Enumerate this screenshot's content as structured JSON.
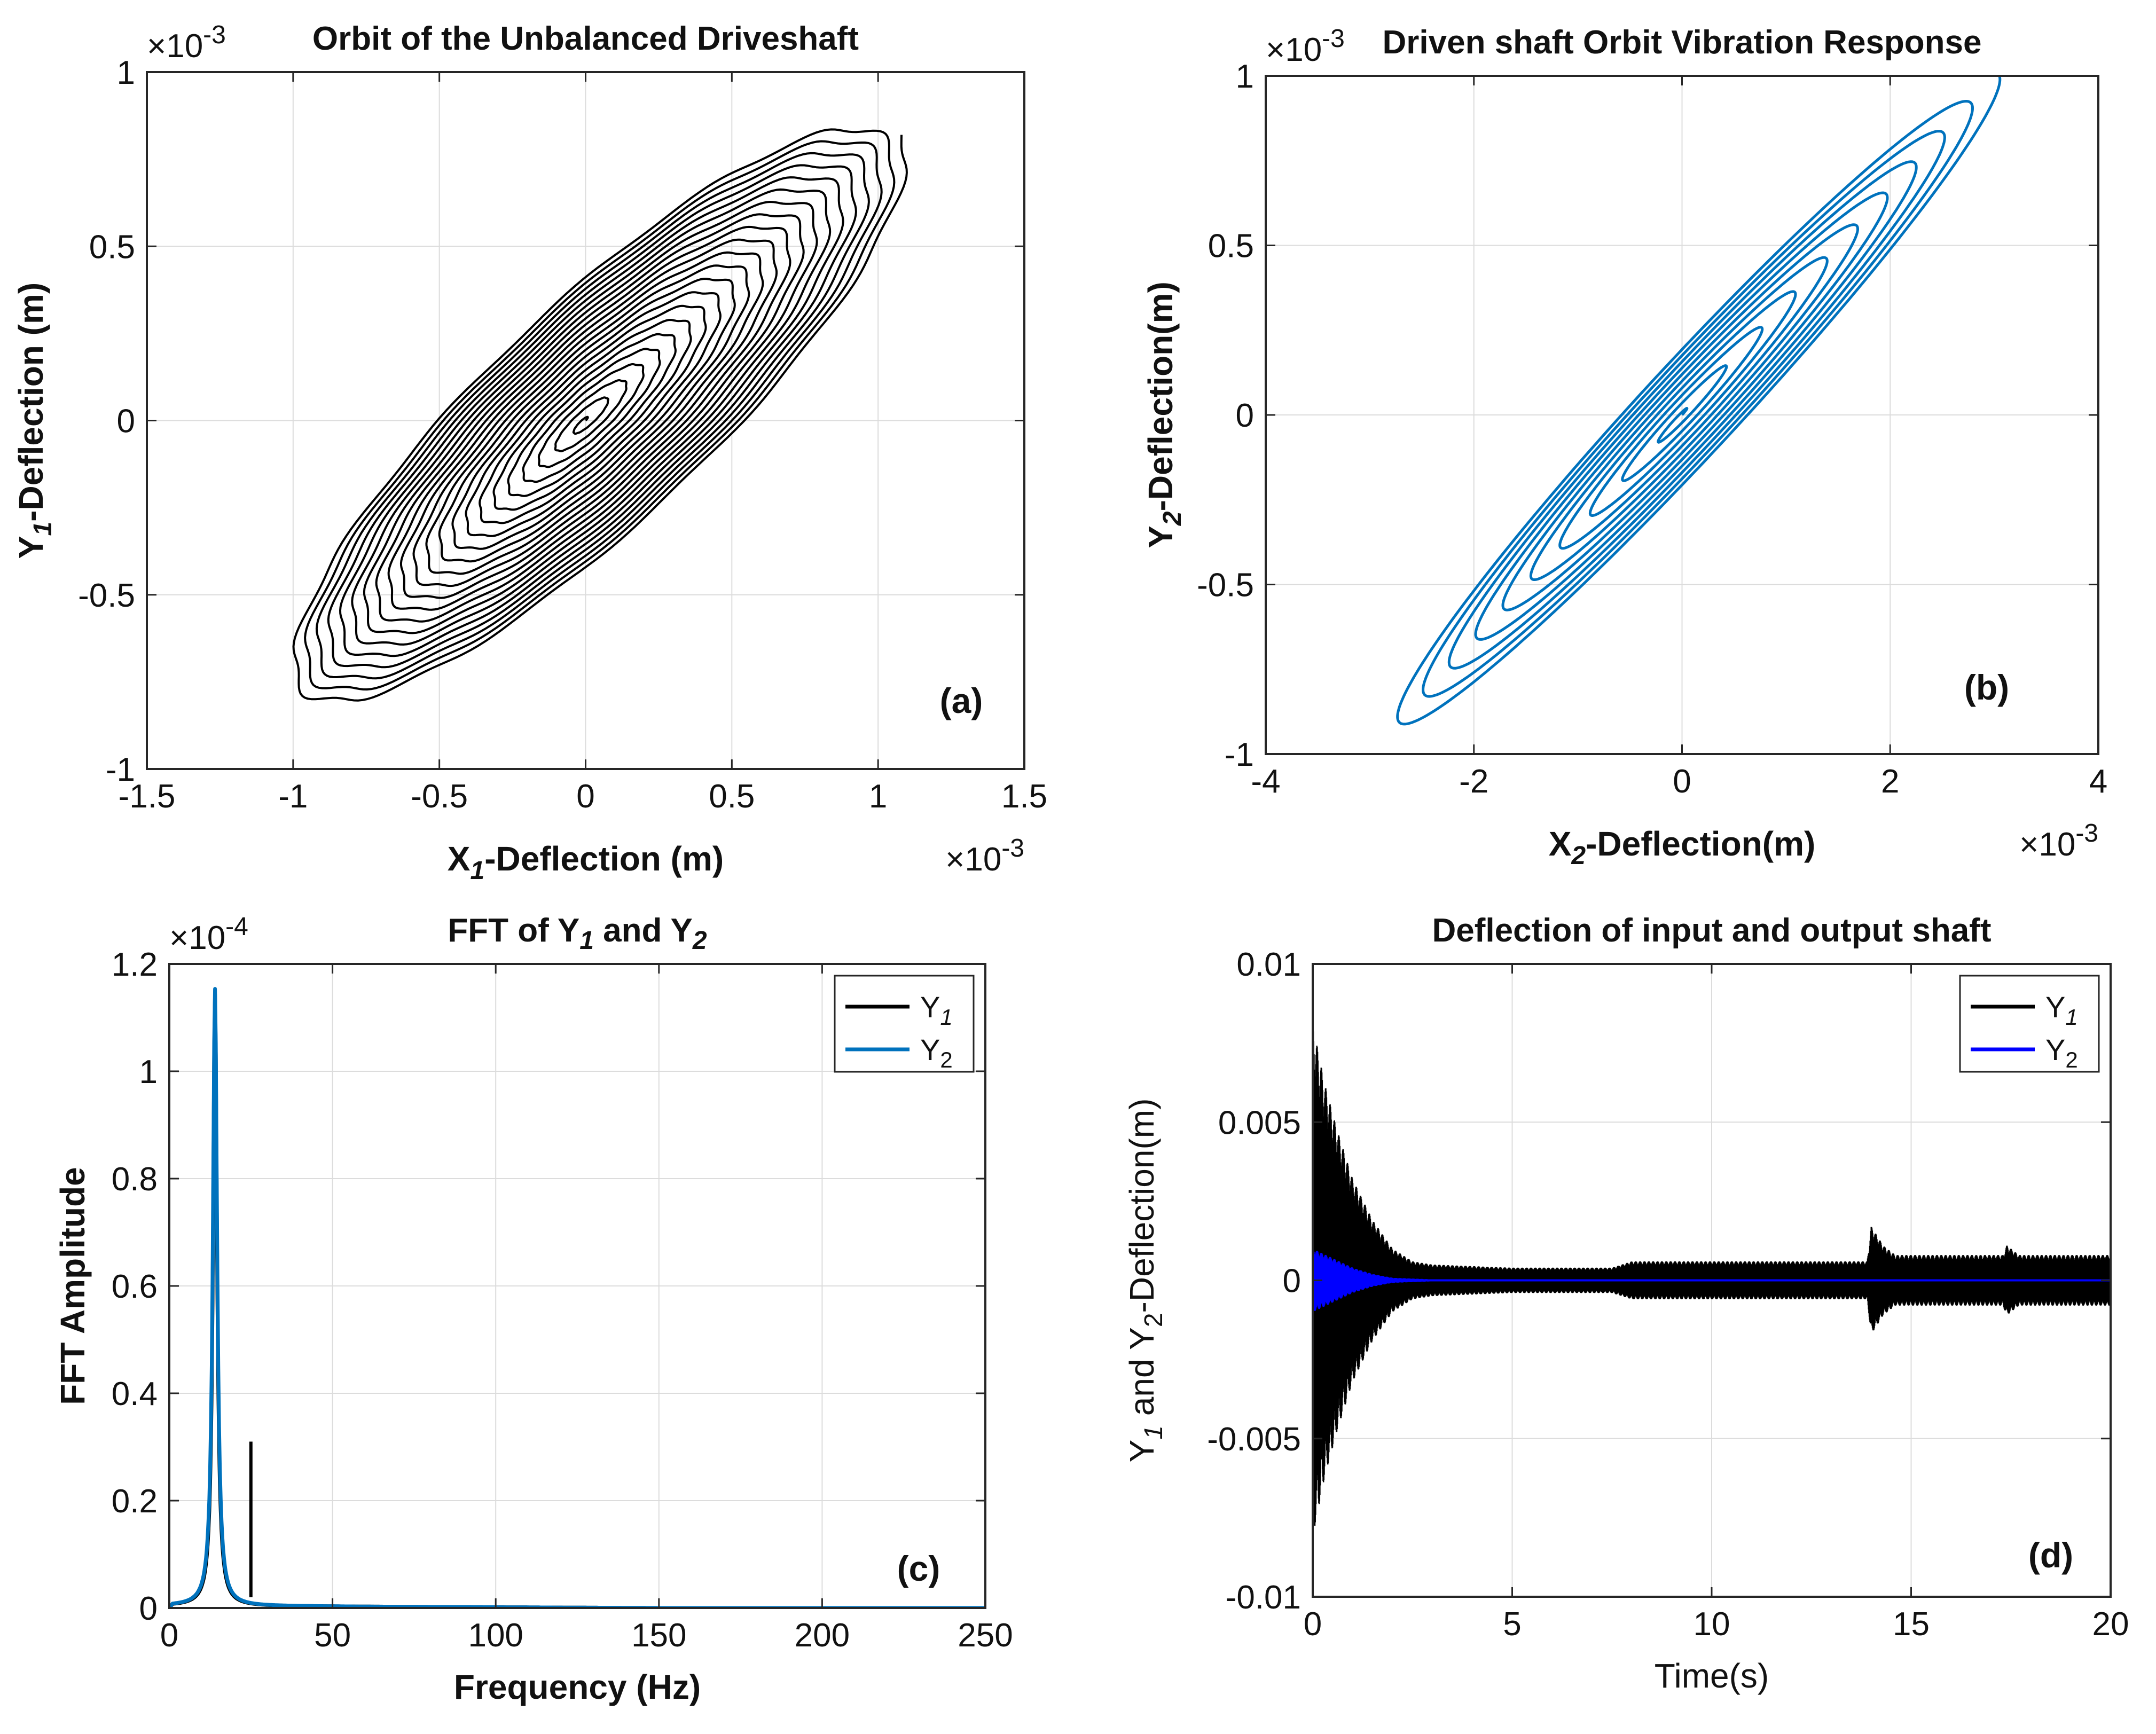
{
  "chart_data": [
    {
      "id": "a",
      "type": "line",
      "title": "Orbit of the Unbalanced Driveshaft",
      "xlabel": "X1-Deflection (m)",
      "ylabel": "Y1-Deflection (m)",
      "xlabel_main": "X",
      "xlabel_sub": "1",
      "xlabel_rest": "-Deflection (m)",
      "ylabel_main": "Y",
      "ylabel_sub": "1",
      "ylabel_rest": "-Deflection (m)",
      "x_multiplier": "×10",
      "x_exponent": "-3",
      "y_multiplier": "×10",
      "y_exponent": "-3",
      "xlim": [
        -1.5,
        1.5
      ],
      "ylim": [
        -1,
        1
      ],
      "xticks": [
        -1.5,
        -1,
        -0.5,
        0,
        0.5,
        1,
        1.5
      ],
      "xtick_labels": [
        "-1.5",
        "-1",
        "-0.5",
        "0",
        "0.5",
        "1",
        "1.5"
      ],
      "yticks": [
        -1,
        -0.5,
        0,
        0.5,
        1
      ],
      "ytick_labels": [
        "-1",
        "-0.5",
        "0",
        "0.5",
        "1"
      ],
      "panel_label": "(a)",
      "series": [
        {
          "name": "orbit",
          "color": "#000000",
          "shape": "growing tilted elliptical spiral",
          "start": [
            0,
            0
          ],
          "end": [
            1.05,
            0.82
          ],
          "max_x": 1.08,
          "min_x": -1.0,
          "max_y": 0.82,
          "min_y": -0.77,
          "loops": 22
        }
      ]
    },
    {
      "id": "b",
      "type": "line",
      "title": "Driven shaft Orbit Vibration Response",
      "xlabel": "X2-Deflection(m)",
      "ylabel": "Y2-Deflection(m)",
      "xlabel_main": "X",
      "xlabel_sub": "2",
      "xlabel_rest": "-Deflection(m)",
      "ylabel_main": "Y",
      "ylabel_sub": "2",
      "ylabel_rest": "-Deflection(m)",
      "x_multiplier": "×10",
      "x_exponent": "-3",
      "y_multiplier": "×10",
      "y_exponent": "-3",
      "xlim": [
        -4,
        4
      ],
      "ylim": [
        -1,
        1
      ],
      "xticks": [
        -4,
        -2,
        0,
        2,
        4
      ],
      "xtick_labels": [
        "-4",
        "-2",
        "0",
        "2",
        "4"
      ],
      "yticks": [
        -1,
        -0.5,
        0,
        0.5,
        1
      ],
      "ytick_labels": [
        "-1",
        "-0.5",
        "0",
        "0.5",
        "1"
      ],
      "panel_label": "(b)",
      "series": [
        {
          "name": "orbit",
          "color": "#0072BD",
          "shape": "narrow tilted elliptical spiral",
          "start": [
            0,
            0
          ],
          "end": [
            3.05,
            1.0
          ],
          "max_x": 3.05,
          "min_x": -2.85,
          "max_y": 1.0,
          "min_y": -0.94,
          "loops": 10
        }
      ]
    },
    {
      "id": "c",
      "type": "line",
      "title": "FFT of Y1 and Y2",
      "title_parts": [
        "FFT of  Y",
        "1",
        " and  Y",
        "2"
      ],
      "xlabel": "Frequency (Hz)",
      "ylabel": "FFT Amplitude",
      "y_multiplier": "×10",
      "y_exponent": "-4",
      "xlim": [
        0,
        250
      ],
      "ylim": [
        0,
        1.2
      ],
      "xticks": [
        0,
        50,
        100,
        150,
        200,
        250
      ],
      "xtick_labels": [
        "0",
        "50",
        "100",
        "150",
        "200",
        "250"
      ],
      "yticks": [
        0,
        0.2,
        0.4,
        0.6,
        0.8,
        1,
        1.2
      ],
      "ytick_labels": [
        "0",
        "0.2",
        "0.4",
        "0.6",
        "0.8",
        "1",
        "1.2"
      ],
      "panel_label": "(c)",
      "legend": [
        {
          "main": "Y",
          "sub": "1",
          "color": "#000000"
        },
        {
          "main": "Y",
          "sub": "2",
          "color": "#0072BD"
        }
      ],
      "legend_position": "top-right",
      "series": [
        {
          "name": "Y1",
          "color": "#000000",
          "peaks": [
            {
              "x": 14,
              "y": 1.14
            },
            {
              "x": 25,
              "y": 0.31
            }
          ]
        },
        {
          "name": "Y2",
          "color": "#0072BD",
          "peaks": [
            {
              "x": 14,
              "y": 1.15
            }
          ]
        }
      ]
    },
    {
      "id": "d",
      "type": "line",
      "title": "Deflection of input and output shaft",
      "xlabel": "Time(s)",
      "ylabel": "Y1 and Y2-Deflection(m)",
      "ylabel_parts": [
        "Y",
        "1",
        " and  Y",
        "2",
        "-Deflection(m)"
      ],
      "xlim": [
        0,
        20
      ],
      "ylim": [
        -0.01,
        0.01
      ],
      "xticks": [
        0,
        5,
        10,
        15,
        20
      ],
      "xtick_labels": [
        "0",
        "5",
        "10",
        "15",
        "20"
      ],
      "yticks": [
        -0.01,
        -0.005,
        0,
        0.005,
        0.01
      ],
      "ytick_labels": [
        "-0.01",
        "-0.005",
        "0",
        "0.005",
        "0.01"
      ],
      "panel_label": "(d)",
      "legend": [
        {
          "main": "Y",
          "sub": "1",
          "color": "#000000"
        },
        {
          "main": "Y",
          "sub": "2",
          "color": "#0000FF"
        }
      ],
      "legend_position": "top-right",
      "series": [
        {
          "name": "Y1",
          "color": "#000000",
          "envelope": [
            [
              0,
              0.0081
            ],
            [
              0.3,
              0.0062
            ],
            [
              0.6,
              0.0048
            ],
            [
              1.0,
              0.0032
            ],
            [
              1.5,
              0.0019
            ],
            [
              2.0,
              0.001
            ],
            [
              2.5,
              0.0006
            ],
            [
              3,
              0.0005
            ],
            [
              5,
              0.0004
            ],
            [
              7.5,
              0.0004
            ],
            [
              8,
              0.0006
            ],
            [
              10,
              0.0006
            ],
            [
              12,
              0.0006
            ],
            [
              13.9,
              0.0006
            ],
            [
              14.0,
              0.0017
            ],
            [
              14.3,
              0.0011
            ],
            [
              14.6,
              0.0008
            ],
            [
              17.3,
              0.0008
            ],
            [
              17.4,
              0.0011
            ],
            [
              17.7,
              0.0008
            ],
            [
              20,
              0.0008
            ]
          ]
        },
        {
          "name": "Y2",
          "color": "#0000FF",
          "envelope": [
            [
              0,
              0.001
            ],
            [
              0.5,
              0.0007
            ],
            [
              1,
              0.0004
            ],
            [
              1.5,
              0.0002
            ],
            [
              2,
              8e-05
            ],
            [
              3,
              3e-05
            ],
            [
              20,
              2e-05
            ]
          ]
        }
      ]
    }
  ]
}
